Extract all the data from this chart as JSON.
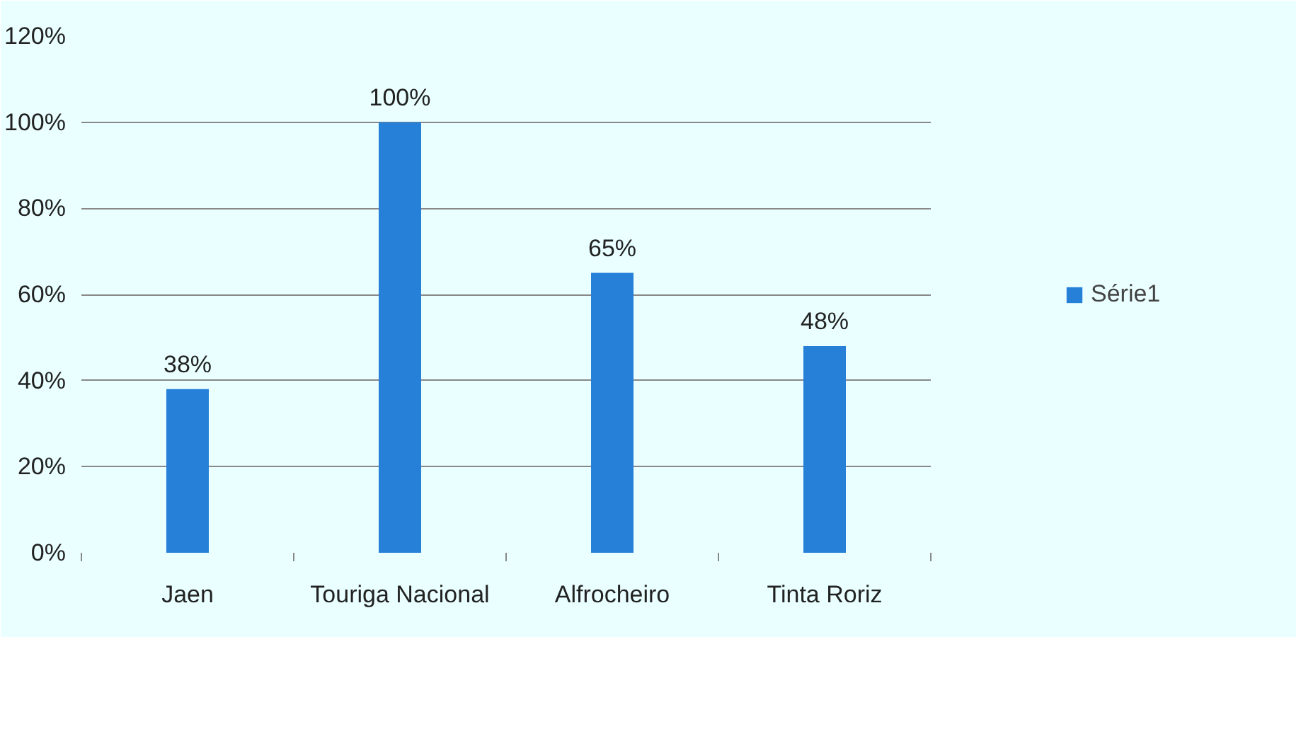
{
  "chart_data": {
    "type": "bar",
    "categories": [
      "Jaen",
      "Touriga Nacional",
      "Alfrocheiro",
      "Tinta Roriz"
    ],
    "series": [
      {
        "name": "Série1",
        "color": "#2680d8",
        "values": [
          38,
          100,
          65,
          48
        ],
        "value_labels": [
          "38%",
          "100%",
          "65%",
          "48%"
        ]
      }
    ],
    "ylim": [
      0,
      120
    ],
    "yticks": [
      {
        "value": 0,
        "label": "0%"
      },
      {
        "value": 20,
        "label": "20%"
      },
      {
        "value": 40,
        "label": "40%"
      },
      {
        "value": 60,
        "label": "60%"
      },
      {
        "value": 80,
        "label": "80%"
      },
      {
        "value": 100,
        "label": "100%"
      },
      {
        "value": 120,
        "label": "120%"
      }
    ],
    "grid": "y",
    "legend": "right"
  }
}
